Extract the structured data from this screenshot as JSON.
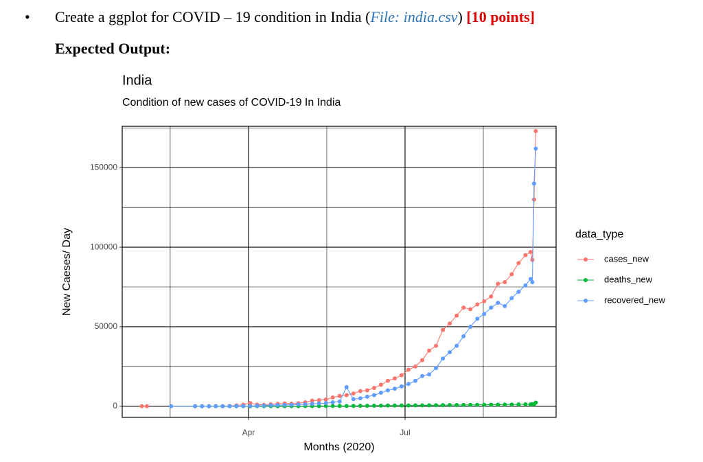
{
  "instruction": {
    "text": "Create a ggplot for COVID – 19 condition in India (",
    "file": "File: india.csv",
    "close": ")",
    "points": "[10 points]"
  },
  "expected_output": "Expected Output:",
  "chart_data": {
    "type": "line",
    "title": "India",
    "subtitle": "Condition of new cases of COVID-19 In India",
    "x_label": "Months (2020)",
    "y_label": "New Caeses/ Day",
    "legend_title": "data_type",
    "legend_position": "right",
    "grid": true,
    "points": true,
    "xlim": [
      18.6,
      270.8
    ],
    "xticks": [
      {
        "value": 92,
        "label": "Apr"
      },
      {
        "value": 183,
        "label": "Jul"
      }
    ],
    "x_minor_grid": [
      46.5,
      137.5,
      228.5
    ],
    "ylim": [
      -7000,
      176000
    ],
    "yticks": [
      0,
      50000,
      100000,
      150000
    ],
    "y_minor_grid": [
      25000,
      75000,
      125000,
      175000
    ],
    "x": [
      30,
      33,
      47,
      61,
      65,
      69,
      73,
      77,
      81,
      85,
      89,
      93,
      97,
      101,
      105,
      109,
      113,
      117,
      121,
      125,
      129,
      133,
      137,
      141,
      145,
      149,
      153,
      157,
      161,
      165,
      169,
      173,
      177,
      181,
      185,
      189,
      193,
      197,
      201,
      205,
      209,
      213,
      217,
      221,
      225,
      229,
      233,
      237,
      241,
      245,
      249,
      253,
      256,
      257,
      258,
      259
    ],
    "series": [
      {
        "name": "cases_new",
        "color": "#F8766D",
        "values": [
          0,
          0,
          null,
          0,
          20,
          30,
          50,
          80,
          200,
          500,
          1000,
          2000,
          1000,
          900,
          1200,
          1500,
          1800,
          1600,
          1900,
          2500,
          3500,
          3800,
          4200,
          5500,
          6500,
          7000,
          8000,
          9500,
          10000,
          11500,
          13500,
          16000,
          17500,
          19500,
          23000,
          25000,
          29000,
          35000,
          38000,
          48000,
          52000,
          57000,
          62000,
          61000,
          64000,
          66000,
          69000,
          77000,
          78000,
          83000,
          90000,
          95000,
          97000,
          92000,
          130000,
          173000
        ]
      },
      {
        "name": "deaths_new",
        "color": "#00BA38",
        "values": [
          null,
          null,
          null,
          0,
          0,
          0,
          1,
          2,
          5,
          10,
          20,
          30,
          40,
          40,
          50,
          60,
          70,
          80,
          70,
          100,
          120,
          130,
          150,
          150,
          160,
          180,
          200,
          280,
          300,
          350,
          400,
          420,
          450,
          500,
          500,
          550,
          580,
          600,
          650,
          700,
          750,
          770,
          800,
          850,
          900,
          950,
          1000,
          1000,
          1050,
          1100,
          1150,
          1200,
          1150,
          1250,
          1300,
          2300
        ]
      },
      {
        "name": "recovered_new",
        "color": "#619CFF",
        "values": [
          null,
          null,
          0,
          0,
          0,
          0,
          5,
          10,
          20,
          50,
          100,
          150,
          300,
          400,
          600,
          700,
          800,
          900,
          1100,
          1300,
          1500,
          1800,
          2000,
          2500,
          3000,
          12000,
          4500,
          5000,
          6000,
          7000,
          8500,
          10000,
          11000,
          12500,
          14000,
          16000,
          19000,
          20000,
          24000,
          30000,
          34000,
          38000,
          44000,
          50000,
          55000,
          58000,
          62000,
          65000,
          63000,
          68000,
          72000,
          76000,
          80000,
          78000,
          140000,
          162000
        ]
      }
    ]
  }
}
